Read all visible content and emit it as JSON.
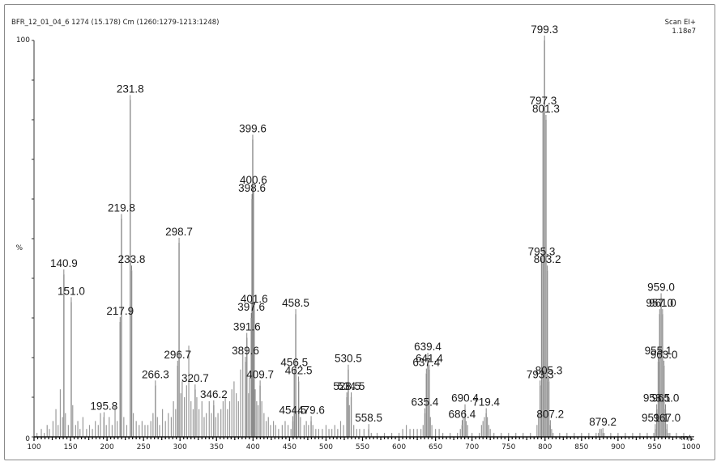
{
  "header": {
    "left": "BFR_12_01_04_6 1274 (15.178) Cm (1260:1279-1213:1248)",
    "right_line1": "Scan EI+",
    "right_line2": "1.18e7"
  },
  "chart_data": {
    "type": "bar",
    "xlabel": "m/z",
    "ylabel": "%",
    "xlim": [
      100,
      1000
    ],
    "ylim": [
      0,
      100
    ],
    "x_ticks": [
      100,
      150,
      200,
      250,
      300,
      350,
      400,
      450,
      500,
      550,
      600,
      650,
      700,
      750,
      800,
      850,
      900,
      950,
      1000
    ],
    "y_ticks": [
      "0",
      "%",
      "100"
    ],
    "labeled_peaks": [
      {
        "mz": 799.3,
        "label": "799.3",
        "intensity": 100
      },
      {
        "mz": 797.3,
        "label": "797.3",
        "intensity": 82
      },
      {
        "mz": 801.3,
        "label": "801.3",
        "intensity": 80
      },
      {
        "mz": 231.8,
        "label": "231.8",
        "intensity": 85
      },
      {
        "mz": 399.6,
        "label": "399.6",
        "intensity": 75
      },
      {
        "mz": 398.6,
        "label": "398.6",
        "intensity": 60
      },
      {
        "mz": 400.6,
        "label": "400.6",
        "intensity": 62
      },
      {
        "mz": 219.8,
        "label": "219.8",
        "intensity": 55
      },
      {
        "mz": 298.7,
        "label": "298.7",
        "intensity": 49
      },
      {
        "mz": 140.9,
        "label": "140.9",
        "intensity": 41
      },
      {
        "mz": 233.8,
        "label": "233.8",
        "intensity": 42
      },
      {
        "mz": 151.0,
        "label": "151.0",
        "intensity": 34
      },
      {
        "mz": 217.9,
        "label": "217.9",
        "intensity": 29
      },
      {
        "mz": 795.3,
        "label": "795.3",
        "intensity": 44
      },
      {
        "mz": 803.2,
        "label": "803.2",
        "intensity": 42
      },
      {
        "mz": 959.0,
        "label": "959.0",
        "intensity": 35
      },
      {
        "mz": 957.0,
        "label": "957.0",
        "intensity": 31
      },
      {
        "mz": 961.0,
        "label": "961.0",
        "intensity": 31
      },
      {
        "mz": 397.6,
        "label": "397.6",
        "intensity": 30
      },
      {
        "mz": 401.6,
        "label": "401.6",
        "intensity": 32
      },
      {
        "mz": 458.5,
        "label": "458.5",
        "intensity": 31
      },
      {
        "mz": 391.6,
        "label": "391.6",
        "intensity": 25
      },
      {
        "mz": 296.7,
        "label": "296.7",
        "intensity": 18
      },
      {
        "mz": 389.6,
        "label": "389.6",
        "intensity": 19
      },
      {
        "mz": 266.3,
        "label": "266.3",
        "intensity": 13
      },
      {
        "mz": 320.7,
        "label": "320.7",
        "intensity": 12
      },
      {
        "mz": 346.2,
        "label": "346.2",
        "intensity": 8
      },
      {
        "mz": 195.8,
        "label": "195.8",
        "intensity": 5
      },
      {
        "mz": 409.7,
        "label": "409.7",
        "intensity": 13
      },
      {
        "mz": 456.5,
        "label": "456.5",
        "intensity": 16
      },
      {
        "mz": 462.5,
        "label": "462.5",
        "intensity": 14
      },
      {
        "mz": 454.5,
        "label": "454.5",
        "intensity": 4
      },
      {
        "mz": 530.5,
        "label": "530.5",
        "intensity": 17
      },
      {
        "mz": 528.5,
        "label": "528.5",
        "intensity": 10
      },
      {
        "mz": 534.5,
        "label": "534.5",
        "intensity": 10
      },
      {
        "mz": 479.6,
        "label": "479.6",
        "intensity": 4
      },
      {
        "mz": 558.5,
        "label": "558.5",
        "intensity": 2
      },
      {
        "mz": 639.4,
        "label": "639.4",
        "intensity": 20
      },
      {
        "mz": 637.4,
        "label": "637.4",
        "intensity": 16
      },
      {
        "mz": 641.4,
        "label": "641.4",
        "intensity": 17
      },
      {
        "mz": 635.4,
        "label": "635.4",
        "intensity": 6
      },
      {
        "mz": 686.4,
        "label": "686.4",
        "intensity": 3
      },
      {
        "mz": 690.4,
        "label": "690.4",
        "intensity": 7
      },
      {
        "mz": 719.4,
        "label": "719.4",
        "intensity": 6
      },
      {
        "mz": 793.3,
        "label": "793.3",
        "intensity": 13
      },
      {
        "mz": 805.3,
        "label": "805.3",
        "intensity": 14
      },
      {
        "mz": 807.2,
        "label": "807.2",
        "intensity": 3
      },
      {
        "mz": 879.2,
        "label": "879.2",
        "intensity": 1
      },
      {
        "mz": 955.1,
        "label": "955.1",
        "intensity": 19
      },
      {
        "mz": 963.0,
        "label": "963.0",
        "intensity": 18
      },
      {
        "mz": 953.1,
        "label": "953.1",
        "intensity": 7
      },
      {
        "mz": 965.0,
        "label": "965.0",
        "intensity": 7
      },
      {
        "mz": 951.1,
        "label": "951.1",
        "intensity": 2
      },
      {
        "mz": 967.0,
        "label": "967.0",
        "intensity": 2
      }
    ],
    "minor_peaks": [
      [
        104,
        1
      ],
      [
        110,
        2
      ],
      [
        114,
        1
      ],
      [
        118,
        3
      ],
      [
        121,
        2
      ],
      [
        126,
        4
      ],
      [
        130,
        7
      ],
      [
        133,
        3
      ],
      [
        136,
        12
      ],
      [
        139,
        5
      ],
      [
        143,
        6
      ],
      [
        147,
        3
      ],
      [
        153,
        8
      ],
      [
        157,
        3
      ],
      [
        160,
        4
      ],
      [
        163,
        2
      ],
      [
        167,
        5
      ],
      [
        172,
        2
      ],
      [
        176,
        3
      ],
      [
        180,
        2
      ],
      [
        184,
        4
      ],
      [
        188,
        3
      ],
      [
        191,
        6
      ],
      [
        199,
        3
      ],
      [
        203,
        5
      ],
      [
        207,
        3
      ],
      [
        211,
        8
      ],
      [
        214,
        4
      ],
      [
        223,
        5
      ],
      [
        227,
        3
      ],
      [
        236,
        6
      ],
      [
        240,
        4
      ],
      [
        244,
        3
      ],
      [
        248,
        4
      ],
      [
        252,
        3
      ],
      [
        256,
        3
      ],
      [
        260,
        4
      ],
      [
        263,
        6
      ],
      [
        269,
        5
      ],
      [
        272,
        3
      ],
      [
        276,
        7
      ],
      [
        280,
        4
      ],
      [
        284,
        6
      ],
      [
        288,
        5
      ],
      [
        291,
        9
      ],
      [
        294,
        7
      ],
      [
        301,
        11
      ],
      [
        303,
        14
      ],
      [
        306,
        10
      ],
      [
        309,
        13
      ],
      [
        312,
        23
      ],
      [
        315,
        9
      ],
      [
        318,
        7
      ],
      [
        323,
        10
      ],
      [
        326,
        7
      ],
      [
        330,
        9
      ],
      [
        333,
        5
      ],
      [
        336,
        6
      ],
      [
        340,
        9
      ],
      [
        343,
        6
      ],
      [
        349,
        5
      ],
      [
        352,
        6
      ],
      [
        356,
        7
      ],
      [
        359,
        9
      ],
      [
        362,
        10
      ],
      [
        365,
        7
      ],
      [
        368,
        9
      ],
      [
        371,
        12
      ],
      [
        374,
        14
      ],
      [
        377,
        11
      ],
      [
        380,
        9
      ],
      [
        383,
        17
      ],
      [
        386,
        21
      ],
      [
        394,
        11
      ],
      [
        395,
        15
      ],
      [
        403,
        12
      ],
      [
        405,
        9
      ],
      [
        407,
        8
      ],
      [
        412,
        9
      ],
      [
        415,
        6
      ],
      [
        418,
        4
      ],
      [
        421,
        5
      ],
      [
        424,
        3
      ],
      [
        428,
        4
      ],
      [
        431,
        3
      ],
      [
        435,
        2
      ],
      [
        440,
        3
      ],
      [
        444,
        4
      ],
      [
        448,
        3
      ],
      [
        452,
        2
      ],
      [
        460,
        6
      ],
      [
        465,
        5
      ],
      [
        470,
        3
      ],
      [
        473,
        4
      ],
      [
        476,
        3
      ],
      [
        482,
        3
      ],
      [
        486,
        2
      ],
      [
        490,
        2
      ],
      [
        495,
        2
      ],
      [
        500,
        3
      ],
      [
        504,
        2
      ],
      [
        508,
        2
      ],
      [
        512,
        3
      ],
      [
        516,
        2
      ],
      [
        520,
        4
      ],
      [
        524,
        3
      ],
      [
        532,
        8
      ],
      [
        538,
        3
      ],
      [
        542,
        2
      ],
      [
        546,
        2
      ],
      [
        552,
        2
      ],
      [
        562,
        1
      ],
      [
        570,
        1
      ],
      [
        580,
        1
      ],
      [
        590,
        1
      ],
      [
        600,
        1
      ],
      [
        605,
        2
      ],
      [
        610,
        3
      ],
      [
        615,
        2
      ],
      [
        620,
        2
      ],
      [
        625,
        2
      ],
      [
        630,
        2
      ],
      [
        633,
        3
      ],
      [
        643,
        5
      ],
      [
        645,
        3
      ],
      [
        650,
        2
      ],
      [
        655,
        2
      ],
      [
        660,
        1
      ],
      [
        670,
        1
      ],
      [
        680,
        1
      ],
      [
        684,
        2
      ],
      [
        688,
        5
      ],
      [
        692,
        4
      ],
      [
        694,
        3
      ],
      [
        700,
        1
      ],
      [
        710,
        1
      ],
      [
        713,
        3
      ],
      [
        715,
        4
      ],
      [
        717,
        5
      ],
      [
        721,
        5
      ],
      [
        723,
        3
      ],
      [
        725,
        2
      ],
      [
        730,
        1
      ],
      [
        740,
        1
      ],
      [
        750,
        1
      ],
      [
        760,
        1
      ],
      [
        770,
        1
      ],
      [
        780,
        1
      ],
      [
        789,
        3
      ],
      [
        791,
        6
      ],
      [
        809,
        2
      ],
      [
        811,
        1
      ],
      [
        820,
        1
      ],
      [
        830,
        1
      ],
      [
        840,
        1
      ],
      [
        850,
        1
      ],
      [
        860,
        1
      ],
      [
        870,
        1
      ],
      [
        873,
        1
      ],
      [
        875,
        2
      ],
      [
        877,
        2
      ],
      [
        881,
        1
      ],
      [
        890,
        1
      ],
      [
        900,
        1
      ],
      [
        910,
        1
      ],
      [
        920,
        1
      ],
      [
        930,
        1
      ],
      [
        940,
        1
      ],
      [
        949,
        1
      ],
      [
        969,
        1
      ],
      [
        971,
        1
      ],
      [
        980,
        1
      ],
      [
        990,
        1
      ]
    ]
  }
}
